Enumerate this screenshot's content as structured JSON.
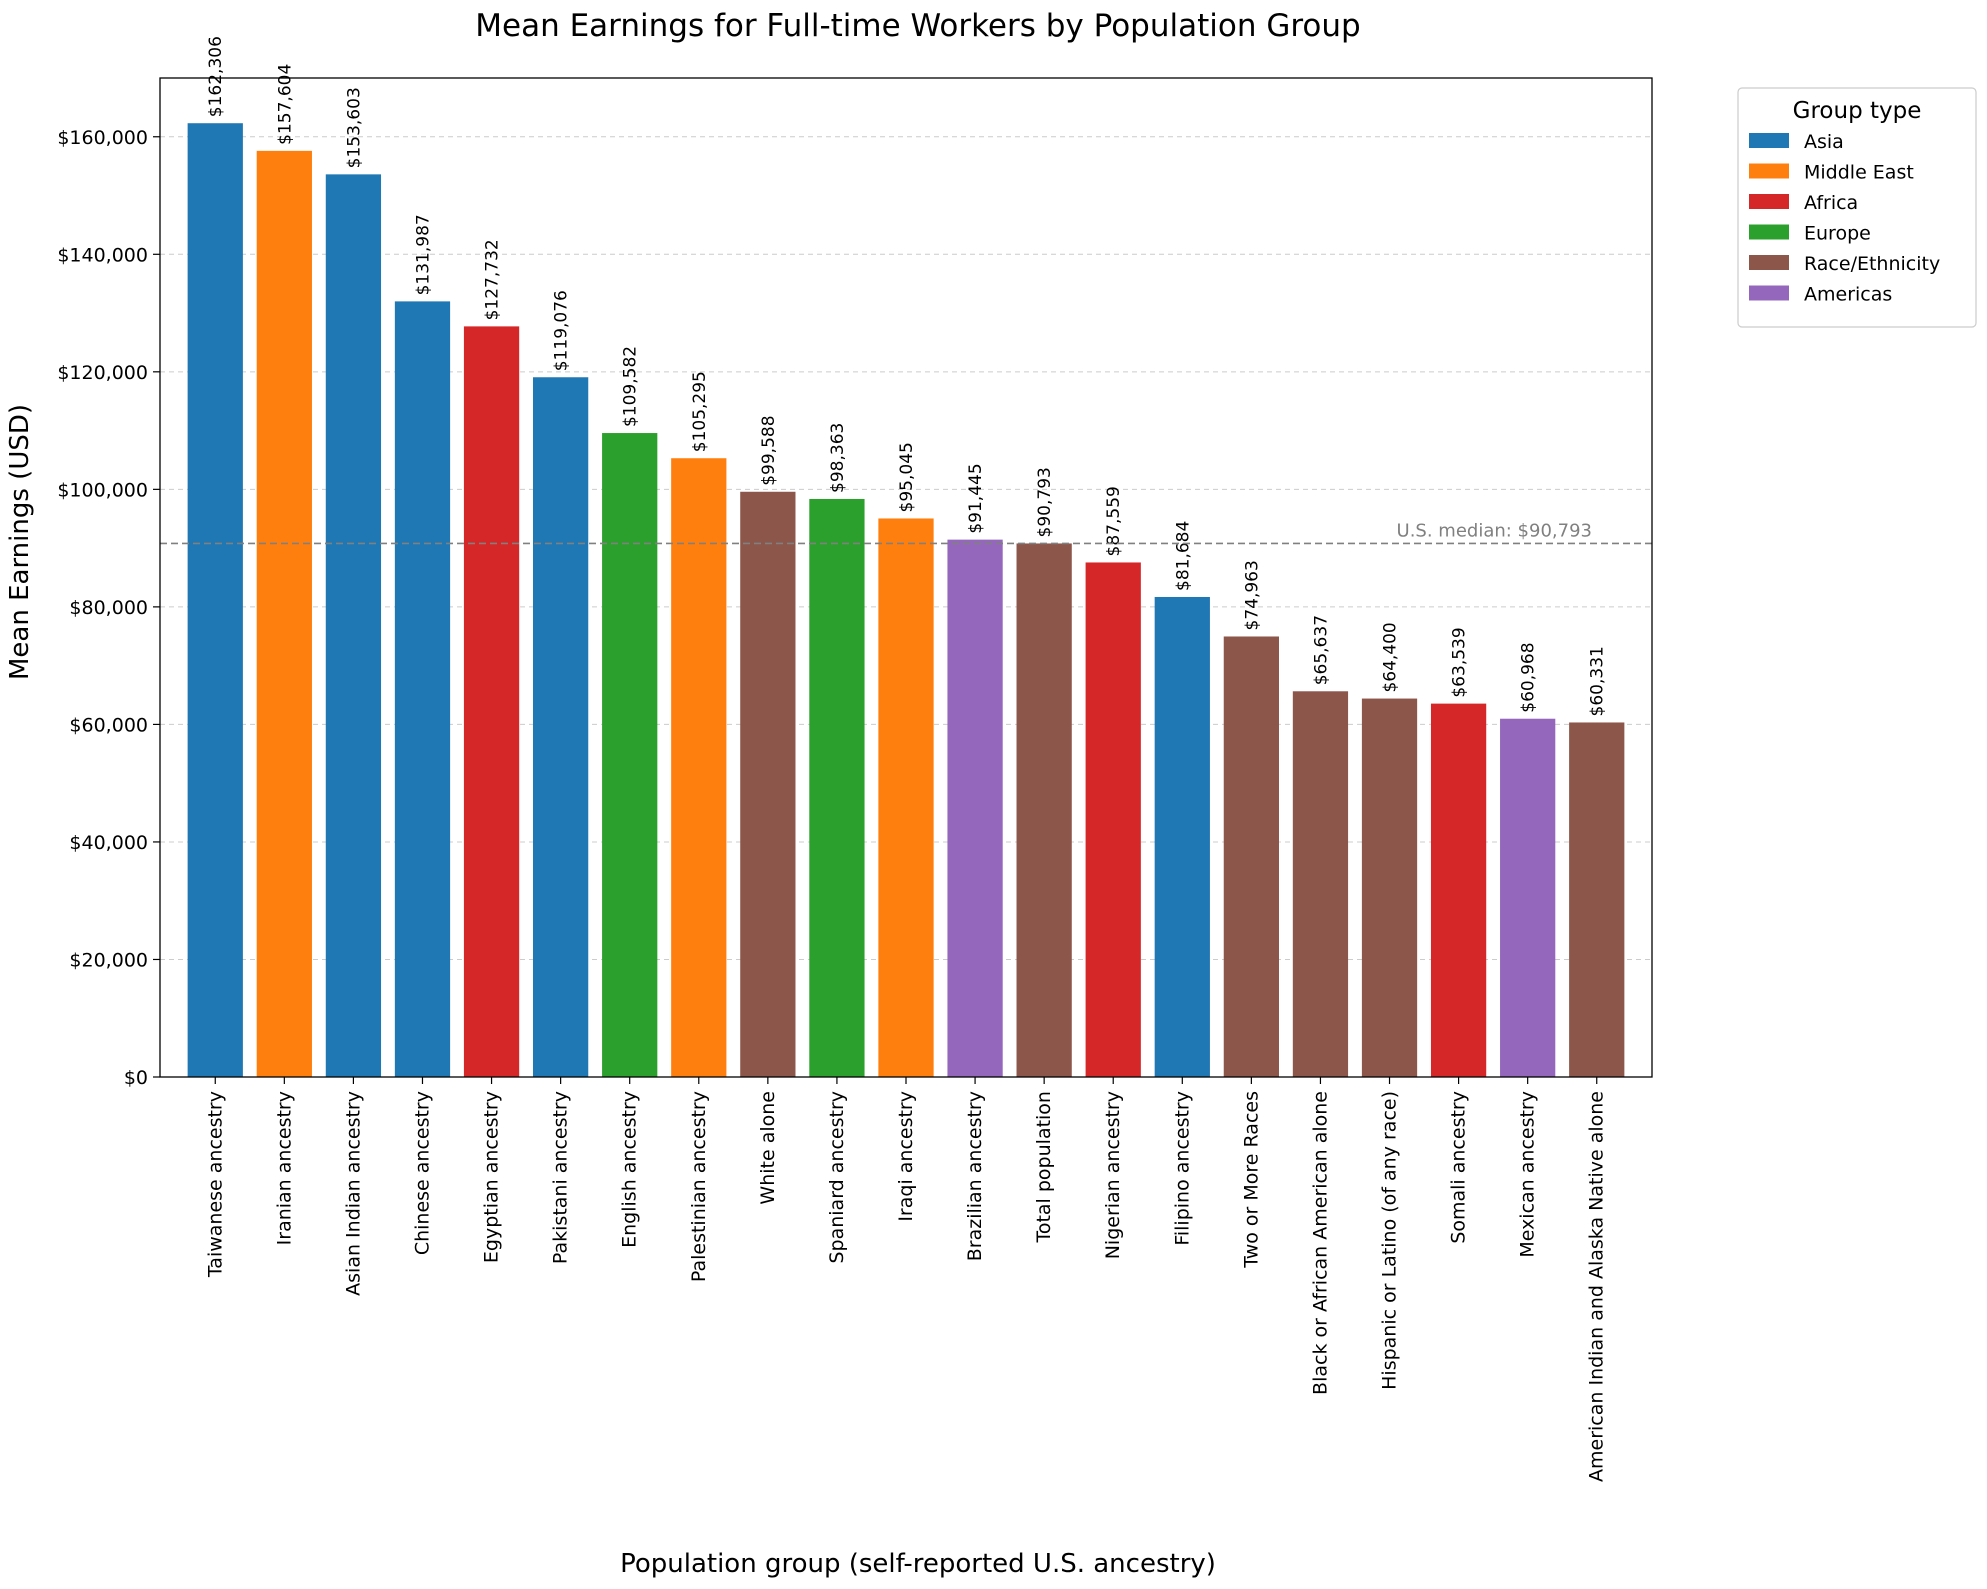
{
  "chart_data": {
    "type": "bar",
    "title": "Mean Earnings for Full-time Workers by Population Group",
    "xlabel": "Population group (self-reported U.S. ancestry)",
    "ylabel": "Mean Earnings (USD)",
    "ylim": [
      0,
      170000
    ],
    "yticks": [
      0,
      20000,
      40000,
      60000,
      80000,
      100000,
      120000,
      140000,
      160000
    ],
    "ytick_labels": [
      "$0",
      "$20,000",
      "$40,000",
      "$60,000",
      "$80,000",
      "$100,000",
      "$120,000",
      "$140,000",
      "$160,000"
    ],
    "grid": "horizontal dashed",
    "categories": [
      "Taiwanese ancestry",
      "Iranian ancestry",
      "Asian Indian ancestry",
      "Chinese ancestry",
      "Egyptian ancestry",
      "Pakistani ancestry",
      "English ancestry",
      "Palestinian ancestry",
      "White alone",
      "Spaniard ancestry",
      "Iraqi ancestry",
      "Brazilian ancestry",
      "Total population",
      "Nigerian ancestry",
      "Filipino ancestry",
      "Two or More Races",
      "Black or African American alone",
      "Hispanic or Latino (of any race)",
      "Somali ancestry",
      "Mexican ancestry",
      "American Indian and Alaska Native alone"
    ],
    "values": [
      162306,
      157604,
      153603,
      131987,
      127732,
      119076,
      109582,
      105295,
      99588,
      98363,
      95045,
      91445,
      90793,
      87559,
      81684,
      74963,
      65637,
      64400,
      63539,
      60968,
      60331
    ],
    "value_labels": [
      "$162,306",
      "$157,604",
      "$153,603",
      "$131,987",
      "$127,732",
      "$119,076",
      "$109,582",
      "$105,295",
      "$99,588",
      "$98,363",
      "$95,045",
      "$91,445",
      "$90,793",
      "$87,559",
      "$81,684",
      "$74,963",
      "$65,637",
      "$64,400",
      "$63,539",
      "$60,968",
      "$60,331"
    ],
    "group_types": [
      "Asia",
      "Middle East",
      "Asia",
      "Asia",
      "Africa",
      "Asia",
      "Europe",
      "Middle East",
      "Race/Ethnicity",
      "Europe",
      "Middle East",
      "Americas",
      "Race/Ethnicity",
      "Africa",
      "Asia",
      "Race/Ethnicity",
      "Race/Ethnicity",
      "Race/Ethnicity",
      "Africa",
      "Americas",
      "Race/Ethnicity"
    ],
    "reference_line": {
      "value": 90793,
      "label": "U.S. median: $90,793",
      "color": "#808080",
      "style": "dashed"
    },
    "legend": {
      "title": "Group type",
      "placement": "outside-top-right",
      "entries": [
        {
          "name": "Asia",
          "color": "#1f77b4"
        },
        {
          "name": "Middle East",
          "color": "#ff7f0e"
        },
        {
          "name": "Africa",
          "color": "#d62728"
        },
        {
          "name": "Europe",
          "color": "#2ca02c"
        },
        {
          "name": "Race/Ethnicity",
          "color": "#8c564b"
        },
        {
          "name": "Americas",
          "color": "#9467bd"
        }
      ]
    }
  }
}
